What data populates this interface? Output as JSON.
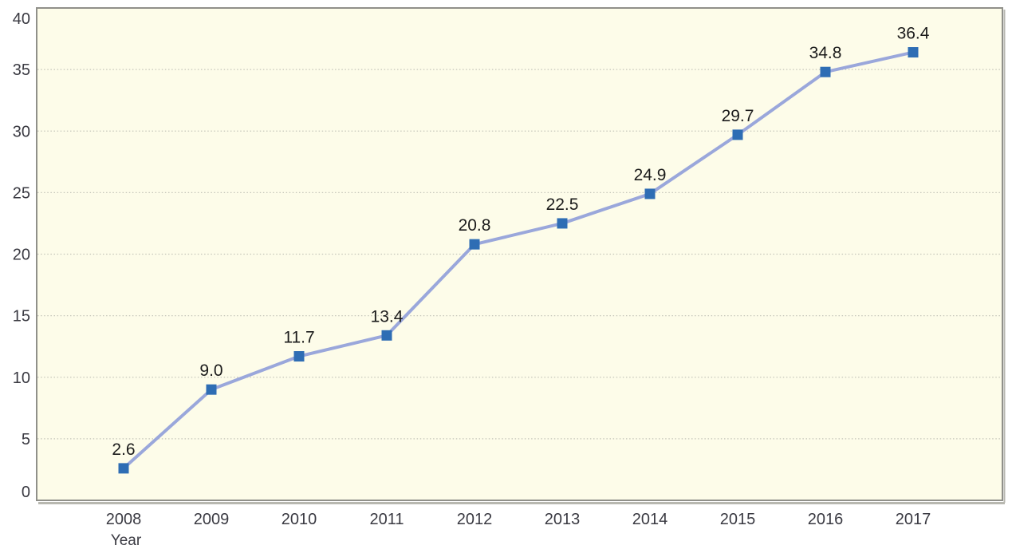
{
  "chart_data": {
    "type": "line",
    "categories": [
      "2008",
      "2009",
      "2010",
      "2011",
      "2012",
      "2013",
      "2014",
      "2015",
      "2016",
      "2017"
    ],
    "values": [
      2.6,
      9.0,
      11.7,
      13.4,
      20.8,
      22.5,
      24.9,
      29.7,
      34.8,
      36.4
    ],
    "data_labels": [
      "2.6",
      "9.0",
      "11.7",
      "13.4",
      "20.8",
      "22.5",
      "24.9",
      "29.7",
      "34.8",
      "36.4"
    ],
    "title": "",
    "xlabel": "Year",
    "ylabel": "",
    "ylim": [
      0,
      40
    ],
    "yticks": [
      0,
      5,
      10,
      15,
      20,
      25,
      30,
      35,
      40
    ],
    "grid": "horizontal-dotted",
    "legend": "none",
    "marker": "square"
  },
  "colors": {
    "plot_background": "#fdfce9",
    "plot_border": "#90908a",
    "plot_shadow": "#b8b8b0",
    "grid_line": "#c5c5ba",
    "series_line": "#9aa7db",
    "marker_fill": "#2e6db4",
    "tick_label": "#3a3a42",
    "data_label": "#1b1b1b",
    "axis_title": "#3a3a42"
  }
}
